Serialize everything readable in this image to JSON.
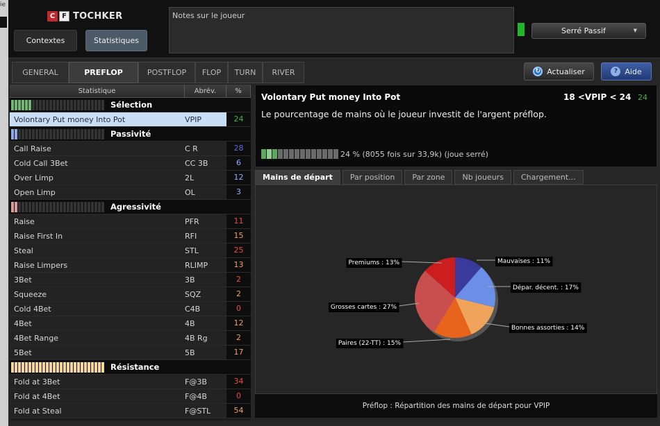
{
  "edge": {
    "glyph": "ie"
  },
  "header": {
    "logo_c": "C",
    "logo_f": "F",
    "logo_text": "TOCHKER",
    "contextes": "Contextes",
    "statistiques": "Statistiques",
    "notes_placeholder": "Notes sur le joueur",
    "profile": "Serré Passif"
  },
  "tabs": [
    "GENERAL",
    "PREFLOP",
    "POSTFLOP",
    "FLOP",
    "TURN",
    "RIVER"
  ],
  "actions": {
    "actualiser": "Actualiser",
    "aide": "Aide"
  },
  "stats_table": {
    "headers": {
      "name": "Statistique",
      "abr": "Abrév.",
      "pct": "%"
    },
    "sections": [
      {
        "title": "Sélection",
        "color": "#6fb86f",
        "filled": 6,
        "rows": [
          {
            "name": "Volontary Put money Into Pot",
            "abr": "VPIP",
            "val": "24",
            "color": "#4ab04a",
            "selected": true
          }
        ]
      },
      {
        "title": "Passivité",
        "color": "#8fa8e6",
        "filled": 2,
        "rows": [
          {
            "name": "Call Raise",
            "abr": "C R",
            "val": "28",
            "color": "#5b6ad6"
          },
          {
            "name": "Cold Call 3Bet",
            "abr": "CC 3B",
            "val": "6",
            "color": "#8fb2ff"
          },
          {
            "name": "Over Limp",
            "abr": "2L",
            "val": "12",
            "color": "#8fb2ff"
          },
          {
            "name": "Open Limp",
            "abr": "OL",
            "val": "3",
            "color": "#8fb2ff"
          }
        ]
      },
      {
        "title": "Agressivité",
        "color": "#d89a9a",
        "filled": 2,
        "rows": [
          {
            "name": "Raise",
            "abr": "PFR",
            "val": "11",
            "color": "#e84f3e"
          },
          {
            "name": "Raise First In",
            "abr": "RFI",
            "val": "15",
            "color": "#f0a35a"
          },
          {
            "name": "Steal",
            "abr": "STL",
            "val": "25",
            "color": "#e84f3e"
          },
          {
            "name": "Raise Limpers",
            "abr": "RLIMP",
            "val": "13",
            "color": "#f0a35a"
          },
          {
            "name": "3Bet",
            "abr": "3B",
            "val": "2",
            "color": "#e84f3e"
          },
          {
            "name": "Squeeze",
            "abr": "SQZ",
            "val": "2",
            "color": "#f0a35a"
          },
          {
            "name": "Cold 4Bet",
            "abr": "C4B",
            "val": "0",
            "color": "#e84f3e"
          },
          {
            "name": "4Bet",
            "abr": "4B",
            "val": "12",
            "color": "#f0a35a"
          },
          {
            "name": "4Bet Range",
            "abr": "4B Rg",
            "val": "2",
            "color": "#f0a35a"
          },
          {
            "name": "5Bet",
            "abr": "5B",
            "val": "17",
            "color": "#f0a35a"
          }
        ]
      },
      {
        "title": "Résistance",
        "color": "#f5d69a",
        "filled": 27,
        "rows": [
          {
            "name": "Fold at 3Bet",
            "abr": "F@3B",
            "val": "34",
            "color": "#e84f3e"
          },
          {
            "name": "Fold at 4Bet",
            "abr": "F@4B",
            "val": "0",
            "color": "#e84f3e"
          },
          {
            "name": "Fold at Steal",
            "abr": "F@STL",
            "val": "54",
            "color": "#f0a35a"
          }
        ]
      }
    ]
  },
  "detail": {
    "title": "Volontary Put money Into Pot",
    "range": "18 <VPIP < 24",
    "value": "24",
    "value_color": "#4ab04a",
    "description": "Le pourcentage de mains où le joueur investit de l'argent préflop.",
    "bar_filled": 3,
    "bar_text": "24 % (8055 fois sur 33,9k) (joue serré)"
  },
  "subtabs": [
    "Mains de départ",
    "Par position",
    "Par zone",
    "Nb joueurs",
    "Chargement..."
  ],
  "chart_caption": "Préflop : Répartition des mains de départ pour VPIP",
  "chart_data": {
    "type": "pie",
    "title": "",
    "slices": [
      {
        "label": "Mauvaises : 11%",
        "value": 11,
        "color": "#3a3a9c"
      },
      {
        "label": "Dépar. décent. : 17%",
        "value": 17,
        "color": "#6b8fe6"
      },
      {
        "label": "Bonnes assorties : 14%",
        "value": 14,
        "color": "#f0a35a"
      },
      {
        "label": "Paires (22-TT) : 15%",
        "value": 15,
        "color": "#e8641c"
      },
      {
        "label": "Grosses cartes : 27%",
        "value": 27,
        "color": "#c94f4f"
      },
      {
        "label": "Premiums : 13%",
        "value": 13,
        "color": "#cc1e1e"
      }
    ]
  }
}
